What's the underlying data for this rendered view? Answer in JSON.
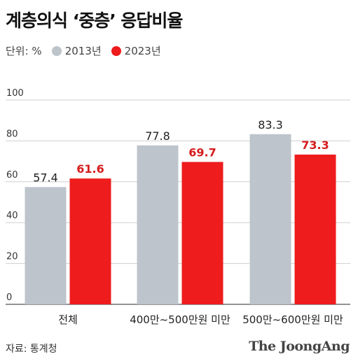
{
  "title": "계층의식 ‘중층’ 응답비율",
  "legend": {
    "unit": "단위: %",
    "items": [
      {
        "label": "2013년",
        "color": "#bdc4cb"
      },
      {
        "label": "2023년",
        "color": "#ee1c1c"
      }
    ]
  },
  "source": "자료: 통계청",
  "logo": "The JoongAng",
  "chart_data": {
    "type": "bar",
    "categories": [
      "전체",
      "400만~500만원 미만",
      "500만~600만원 미만"
    ],
    "series": [
      {
        "name": "2013년",
        "values": [
          57.4,
          77.8,
          83.3
        ],
        "color": "#bdc4cb",
        "label_color": "#222222"
      },
      {
        "name": "2023년",
        "values": [
          61.6,
          69.7,
          73.3
        ],
        "color": "#ee1c1c",
        "label_color": "#d51c1c"
      }
    ],
    "ylim": [
      0,
      100
    ],
    "yticks": [
      0,
      20,
      40,
      60,
      80,
      100
    ],
    "grid": true,
    "legend_position": "top-left"
  }
}
